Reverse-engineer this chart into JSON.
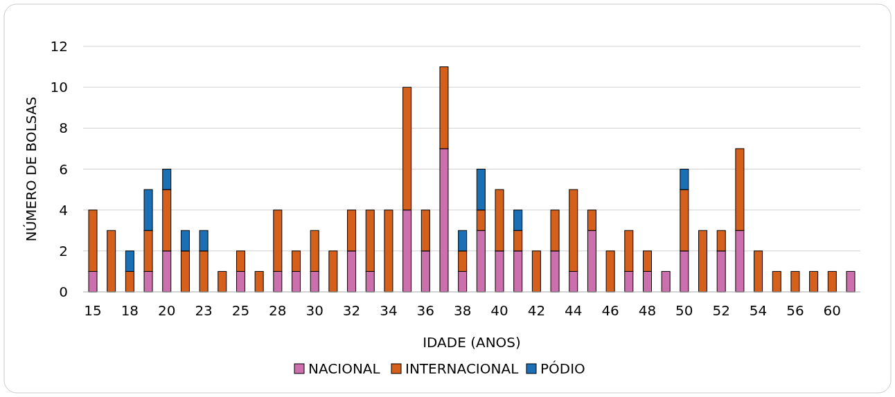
{
  "chart_data": {
    "type": "bar",
    "stacked": true,
    "xlabel": "IDADE (ANOS)",
    "ylabel": "NÚMERO DE BOLSAS",
    "categories": [
      "15",
      null,
      "18",
      null,
      "20",
      null,
      "23",
      null,
      "25",
      null,
      "28",
      null,
      "30",
      null,
      "32",
      null,
      "34",
      null,
      "36",
      null,
      "38",
      null,
      "40",
      null,
      "42",
      null,
      "44",
      null,
      "46",
      null,
      "48",
      null,
      "50",
      null,
      "52",
      null,
      "54",
      null,
      "56",
      null,
      "60",
      null
    ],
    "series": [
      {
        "name": "NACIONAL",
        "color": "#cc6fad",
        "values": [
          1,
          0,
          0,
          1,
          2,
          0,
          0,
          0,
          1,
          0,
          1,
          1,
          1,
          0,
          2,
          1,
          0,
          4,
          2,
          7,
          1,
          3,
          2,
          2,
          0,
          2,
          1,
          3,
          0,
          1,
          1,
          1,
          2,
          0,
          2,
          3,
          0,
          0,
          0,
          0,
          0,
          1
        ]
      },
      {
        "name": "INTERNACIONAL",
        "color": "#d4601c",
        "values": [
          3,
          3,
          1,
          2,
          3,
          2,
          2,
          1,
          1,
          1,
          3,
          1,
          2,
          2,
          2,
          3,
          4,
          6,
          2,
          4,
          1,
          1,
          3,
          1,
          2,
          2,
          4,
          1,
          2,
          2,
          1,
          0,
          3,
          3,
          1,
          4,
          2,
          1,
          1,
          1,
          1,
          0
        ]
      },
      {
        "name": "PÓDIO",
        "color": "#1a6fb5",
        "values": [
          0,
          0,
          1,
          2,
          1,
          1,
          1,
          0,
          0,
          0,
          0,
          0,
          0,
          0,
          0,
          0,
          0,
          0,
          0,
          0,
          1,
          2,
          0,
          1,
          0,
          0,
          0,
          0,
          0,
          0,
          0,
          0,
          1,
          0,
          0,
          0,
          0,
          0,
          0,
          0,
          0,
          0
        ]
      }
    ],
    "ylim": [
      0,
      12
    ],
    "yticks": [
      0,
      2,
      4,
      6,
      8,
      10,
      12
    ],
    "grid": "y",
    "legend": "bottom"
  }
}
